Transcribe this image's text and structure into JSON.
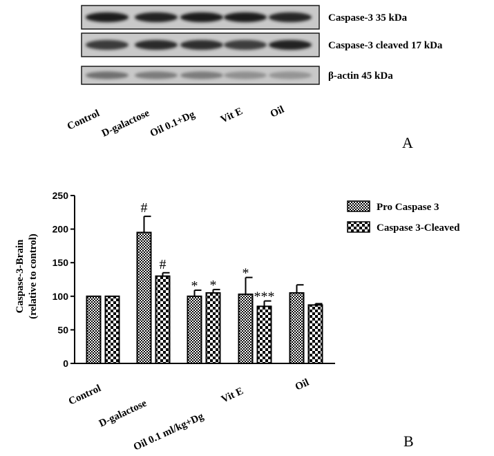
{
  "panel_a": {
    "letter": "A",
    "blots": [
      {
        "label": "Caspase-3 35 kDa",
        "intensities": [
          0.95,
          0.92,
          0.95,
          0.93,
          0.9
        ]
      },
      {
        "label": "Caspase-3 cleaved 17 kDa",
        "intensities": [
          0.8,
          0.88,
          0.85,
          0.78,
          0.92
        ]
      },
      {
        "label": "β-actin 45 kDa",
        "intensities": [
          0.55,
          0.5,
          0.5,
          0.4,
          0.38
        ]
      }
    ],
    "lanes": [
      "Control",
      "D-galactose",
      "Oil 0.1+Dg",
      "Vit E",
      "Oil"
    ]
  },
  "panel_b": {
    "letter": "B"
  },
  "chart_data": {
    "type": "bar",
    "ylabel_line1": "Caspase-3-Brain",
    "ylabel_line2": "(relative to control)",
    "ylim": [
      0,
      250
    ],
    "yticks": [
      "0",
      "50",
      "100",
      "150",
      "200",
      "250"
    ],
    "ytick_values": [
      0,
      50,
      100,
      150,
      200,
      250
    ],
    "categories": [
      "Control",
      "D-galactose",
      "Oil 0.1 ml/kg+Dg",
      "Vit E",
      "Oil"
    ],
    "legend_position": "top-right",
    "series": [
      {
        "name": "Pro Caspase 3",
        "pattern": "dense-checker",
        "values": [
          100,
          195,
          100,
          103,
          105
        ],
        "errors": [
          0,
          24,
          9,
          25,
          12
        ],
        "sig": [
          "",
          "#",
          "*",
          "*",
          ""
        ]
      },
      {
        "name": "Caspase 3-Cleaved",
        "pattern": "coarse-checker",
        "values": [
          100,
          130,
          105,
          85,
          87
        ],
        "errors": [
          0,
          5,
          5,
          8,
          2
        ],
        "sig": [
          "",
          "#",
          "*",
          "***",
          ""
        ]
      }
    ]
  }
}
